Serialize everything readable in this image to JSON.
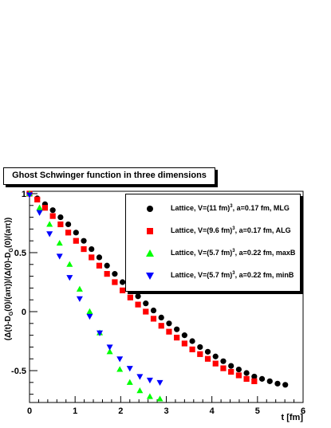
{
  "chart_data": {
    "type": "scatter",
    "title": "Ghost Schwinger function in three dimensions",
    "xlabel": "t [fm]",
    "ylabel": "(Δ(t)-D_G(0)/(aπ))/(Δ(0)-D_G(0)/(aπ))",
    "xlim": [
      0,
      6
    ],
    "ylim": [
      -0.77,
      1.02
    ],
    "x_ticks": [
      "0",
      "1",
      "2",
      "3",
      "4",
      "5",
      "6"
    ],
    "y_ticks": [
      "-0.5",
      "0",
      "0.5",
      "1"
    ],
    "legend_position": "top-right",
    "series": [
      {
        "name": "Lattice, V=(11 fm)^3, a=0.17 fm, MLG",
        "legend_parts": [
          "Lattice, V=(11 fm)",
          "3",
          ", a=0.17 fm, MLG"
        ],
        "marker": "circle",
        "color": "#000000",
        "x": [
          0,
          0.17,
          0.34,
          0.51,
          0.68,
          0.85,
          1.02,
          1.19,
          1.36,
          1.53,
          1.7,
          1.87,
          2.04,
          2.21,
          2.38,
          2.55,
          2.72,
          2.89,
          3.06,
          3.23,
          3.4,
          3.57,
          3.74,
          3.91,
          4.08,
          4.25,
          4.42,
          4.59,
          4.76,
          4.93,
          5.1,
          5.27,
          5.44,
          5.61
        ],
        "y": [
          1.0,
          0.96,
          0.91,
          0.86,
          0.8,
          0.74,
          0.67,
          0.6,
          0.53,
          0.46,
          0.39,
          0.32,
          0.25,
          0.19,
          0.13,
          0.07,
          0.01,
          -0.05,
          -0.1,
          -0.15,
          -0.2,
          -0.25,
          -0.3,
          -0.34,
          -0.38,
          -0.42,
          -0.46,
          -0.49,
          -0.52,
          -0.55,
          -0.57,
          -0.59,
          -0.61,
          -0.62
        ]
      },
      {
        "name": "Lattice, V=(9.6 fm)^3, a=0.17 fm, ALG",
        "legend_parts": [
          "Lattice, V=(9.6 fm)",
          "3",
          ", a=0.17 fm, ALG"
        ],
        "marker": "square",
        "color": "#ff0000",
        "x": [
          0,
          0.17,
          0.34,
          0.51,
          0.68,
          0.85,
          1.02,
          1.19,
          1.36,
          1.53,
          1.7,
          1.87,
          2.04,
          2.21,
          2.38,
          2.55,
          2.72,
          2.89,
          3.06,
          3.23,
          3.4,
          3.57,
          3.74,
          3.91,
          4.08,
          4.25,
          4.42,
          4.59,
          4.76,
          4.93
        ],
        "y": [
          1.0,
          0.95,
          0.88,
          0.81,
          0.74,
          0.67,
          0.6,
          0.53,
          0.46,
          0.39,
          0.32,
          0.25,
          0.18,
          0.12,
          0.06,
          0.0,
          -0.06,
          -0.12,
          -0.17,
          -0.22,
          -0.27,
          -0.32,
          -0.36,
          -0.4,
          -0.44,
          -0.48,
          -0.51,
          -0.54,
          -0.57,
          -0.59
        ]
      },
      {
        "name": "Lattice, V=(5.7 fm)^3, a=0.22 fm, maxB",
        "legend_parts": [
          "Lattice, V=(5.7 fm)",
          "3",
          ", a=0.22 fm, maxB"
        ],
        "marker": "triangle-up",
        "color": "#00ff00",
        "x": [
          0,
          0.22,
          0.44,
          0.66,
          0.88,
          1.1,
          1.32,
          1.54,
          1.76,
          1.98,
          2.2,
          2.42,
          2.64,
          2.86
        ],
        "y": [
          1.0,
          0.88,
          0.74,
          0.58,
          0.4,
          0.19,
          0.0,
          -0.18,
          -0.34,
          -0.49,
          -0.6,
          -0.67,
          -0.72,
          -0.74
        ]
      },
      {
        "name": "Lattice, V=(5.7 fm)^3, a=0.22 fm, minB",
        "legend_parts": [
          "Lattice, V=(5.7 fm)",
          "3",
          ", a=0.22 fm, minB"
        ],
        "marker": "triangle-down",
        "color": "#0000ff",
        "x": [
          0,
          0.22,
          0.44,
          0.66,
          0.88,
          1.1,
          1.32,
          1.54,
          1.76,
          1.98,
          2.2,
          2.42,
          2.64,
          2.86
        ],
        "y": [
          0.99,
          0.84,
          0.66,
          0.47,
          0.29,
          0.11,
          -0.04,
          -0.18,
          -0.3,
          -0.4,
          -0.48,
          -0.55,
          -0.58,
          -0.6
        ]
      }
    ]
  }
}
